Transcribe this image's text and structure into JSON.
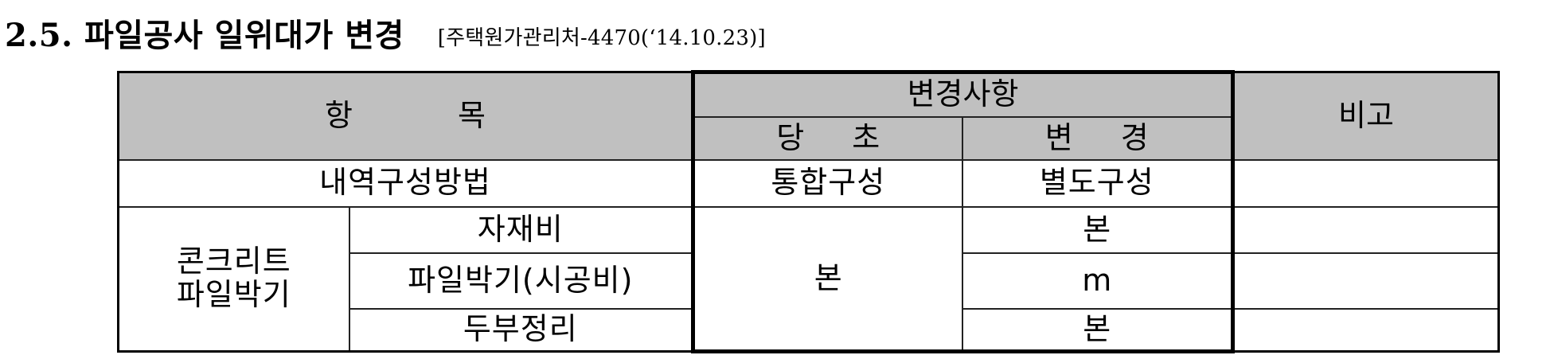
{
  "heading": {
    "title": "2.5. 파일공사 일위대가 변경",
    "reference": "[주택원가관리처-4470(‘14.10.23)]"
  },
  "table": {
    "header": {
      "item": "항 목",
      "change_group": "변경사항",
      "original": "당 초",
      "changed": "변 경",
      "remark": "비고"
    },
    "rows": {
      "composition": {
        "label": "내역구성방법",
        "original": "통합구성",
        "changed": "별도구성",
        "remark": ""
      },
      "pile_group_line1": "콘크리트",
      "pile_group_line2": "파일박기",
      "material": {
        "label": "자재비",
        "changed": "본",
        "remark": ""
      },
      "driving": {
        "label": "파일박기(시공비)",
        "changed": "m",
        "remark": ""
      },
      "head_cleanup": {
        "label": "두부정리",
        "changed": "본",
        "remark": ""
      },
      "pile_original_unit": "본"
    }
  }
}
